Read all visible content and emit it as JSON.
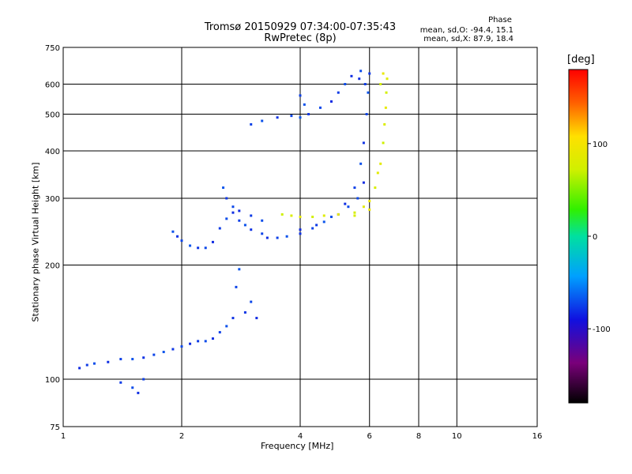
{
  "title_line1": "Tromsø 20150929 07:34:00-07:35:43",
  "title_line2": "RwPretec (8p)",
  "phase_title": "Phase",
  "phase_line1": "mean, sd,O: -94.4, 15.1",
  "phase_line2": "mean, sd,X:  87.9, 18.4",
  "colorbar_unit": "[deg]",
  "chart_data": {
    "type": "scatter",
    "xlabel": "Frequency [MHz]",
    "ylabel": "Stationary phase Virtual Height [km]",
    "xscale": "log",
    "yscale": "log",
    "xlim": [
      1,
      16
    ],
    "ylim": [
      75,
      750
    ],
    "xticks": [
      1,
      2,
      4,
      6,
      8,
      10,
      16
    ],
    "yticks": [
      75,
      100,
      200,
      300,
      400,
      500,
      600,
      750
    ],
    "grid": true,
    "colorbar": {
      "label": "[deg]",
      "range": [
        -180,
        180
      ],
      "ticks": [
        100,
        0,
        -100
      ],
      "colormap": "rainbow (black-purple-blue-cyan-green-yellow-red)"
    },
    "series": [
      {
        "name": "O",
        "phase_mean": -94.4,
        "phase_sd": 15.1,
        "points": [
          [
            1.1,
            107
          ],
          [
            1.15,
            109
          ],
          [
            1.2,
            110
          ],
          [
            1.3,
            111
          ],
          [
            1.4,
            113
          ],
          [
            1.5,
            113
          ],
          [
            1.6,
            114
          ],
          [
            1.7,
            116
          ],
          [
            1.8,
            118
          ],
          [
            1.9,
            120
          ],
          [
            2.0,
            122
          ],
          [
            2.1,
            124
          ],
          [
            2.2,
            126
          ],
          [
            2.3,
            126
          ],
          [
            2.4,
            128
          ],
          [
            2.5,
            133
          ],
          [
            2.6,
            138
          ],
          [
            2.7,
            145
          ],
          [
            2.75,
            175
          ],
          [
            2.8,
            195
          ],
          [
            2.9,
            150
          ],
          [
            3.0,
            160
          ],
          [
            3.1,
            145
          ],
          [
            1.4,
            98
          ],
          [
            1.5,
            95
          ],
          [
            1.55,
            92
          ],
          [
            1.6,
            100
          ],
          [
            1.9,
            245
          ],
          [
            1.95,
            238
          ],
          [
            2.0,
            232
          ],
          [
            2.1,
            225
          ],
          [
            2.2,
            222
          ],
          [
            2.3,
            222
          ],
          [
            2.4,
            230
          ],
          [
            2.5,
            250
          ],
          [
            2.6,
            265
          ],
          [
            2.7,
            275
          ],
          [
            2.8,
            262
          ],
          [
            2.9,
            255
          ],
          [
            3.0,
            248
          ],
          [
            3.2,
            242
          ],
          [
            2.55,
            320
          ],
          [
            2.6,
            300
          ],
          [
            2.7,
            285
          ],
          [
            2.8,
            278
          ],
          [
            3.0,
            270
          ],
          [
            3.2,
            262
          ],
          [
            3.3,
            236
          ],
          [
            3.5,
            236
          ],
          [
            3.7,
            238
          ],
          [
            4.0,
            242
          ],
          [
            4.3,
            250
          ],
          [
            4.6,
            260
          ],
          [
            5.0,
            272
          ],
          [
            5.3,
            285
          ],
          [
            4.0,
            248
          ],
          [
            4.4,
            255
          ],
          [
            4.8,
            268
          ],
          [
            5.2,
            290
          ],
          [
            5.5,
            320
          ],
          [
            5.7,
            370
          ],
          [
            5.8,
            420
          ],
          [
            5.9,
            500
          ],
          [
            5.95,
            570
          ],
          [
            6.0,
            640
          ],
          [
            5.6,
            300
          ],
          [
            5.8,
            330
          ],
          [
            5.85,
            600
          ],
          [
            5.7,
            650
          ],
          [
            5.65,
            620
          ],
          [
            3.0,
            470
          ],
          [
            3.2,
            480
          ],
          [
            3.5,
            490
          ],
          [
            3.8,
            495
          ],
          [
            4.0,
            490
          ],
          [
            4.2,
            500
          ],
          [
            4.5,
            520
          ],
          [
            4.8,
            540
          ],
          [
            5.0,
            570
          ],
          [
            5.2,
            600
          ],
          [
            5.4,
            630
          ],
          [
            4.0,
            560
          ],
          [
            4.1,
            530
          ]
        ]
      },
      {
        "name": "X",
        "phase_mean": 87.9,
        "phase_sd": 18.4,
        "points": [
          [
            3.6,
            272
          ],
          [
            3.8,
            270
          ],
          [
            4.0,
            268
          ],
          [
            4.3,
            268
          ],
          [
            4.6,
            270
          ],
          [
            5.0,
            272
          ],
          [
            5.5,
            275
          ],
          [
            5.8,
            285
          ],
          [
            6.0,
            295
          ],
          [
            6.2,
            320
          ],
          [
            6.4,
            370
          ],
          [
            6.5,
            420
          ],
          [
            6.55,
            470
          ],
          [
            6.6,
            520
          ],
          [
            6.62,
            570
          ],
          [
            6.65,
            620
          ],
          [
            6.5,
            640
          ],
          [
            6.4,
            600
          ],
          [
            6.3,
            350
          ],
          [
            6.0,
            280
          ],
          [
            5.5,
            270
          ]
        ]
      }
    ]
  }
}
